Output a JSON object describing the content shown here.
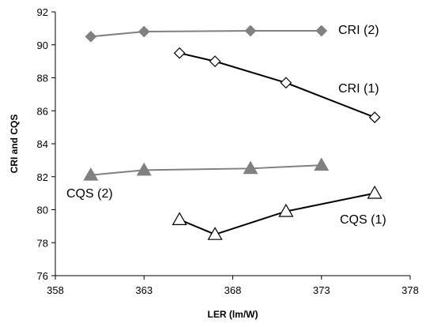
{
  "chart_data": {
    "type": "line",
    "title": "",
    "xlabel": "LER (lm/W)",
    "ylabel": "CRI and CQS",
    "xlim": [
      358,
      378
    ],
    "ylim": [
      76,
      92
    ],
    "xticks": [
      "358",
      "363",
      "368",
      "373",
      "378"
    ],
    "yticks": [
      "76",
      "78",
      "80",
      "82",
      "84",
      "86",
      "88",
      "90",
      "92"
    ],
    "grid": false,
    "legend": "none",
    "series": [
      {
        "name": "CRI (2)",
        "marker": "diamond-filled",
        "color": "#808080",
        "points": [
          [
            360,
            90.5
          ],
          [
            363,
            90.8
          ],
          [
            369,
            90.85
          ],
          [
            373,
            90.85
          ]
        ]
      },
      {
        "name": "CRI (1)",
        "marker": "diamond-open",
        "color": "#000000",
        "points": [
          [
            365,
            89.5
          ],
          [
            367,
            89.0
          ],
          [
            371,
            87.7
          ],
          [
            376,
            85.6
          ]
        ]
      },
      {
        "name": "CQS (2)",
        "marker": "triangle-filled",
        "color": "#808080",
        "points": [
          [
            360,
            82.1
          ],
          [
            363,
            82.4
          ],
          [
            369,
            82.5
          ],
          [
            373,
            82.7
          ]
        ]
      },
      {
        "name": "CQS (1)",
        "marker": "triangle-open",
        "color": "#000000",
        "points": [
          [
            365,
            79.4
          ],
          [
            367,
            78.5
          ],
          [
            371,
            79.9
          ],
          [
            376,
            81.0
          ]
        ]
      }
    ]
  }
}
